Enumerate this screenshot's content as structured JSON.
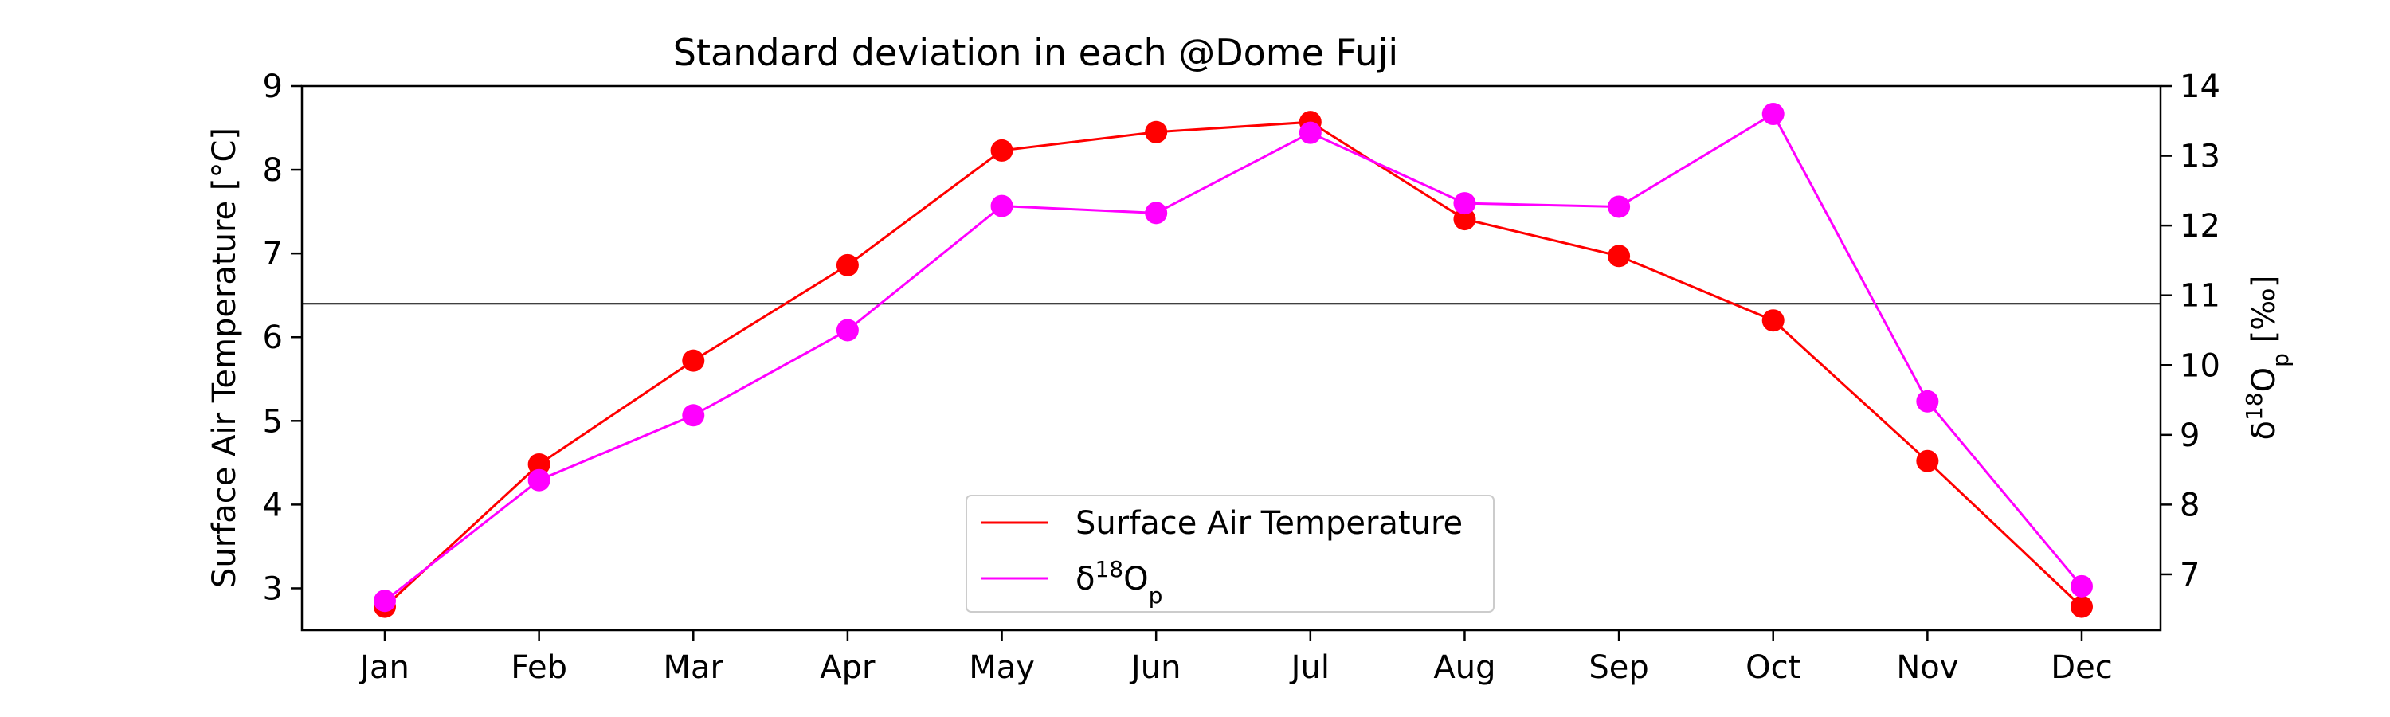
{
  "chart_data": {
    "type": "line",
    "title": "Standard deviation in each @Dome Fuji",
    "categories": [
      "Jan",
      "Feb",
      "Mar",
      "Apr",
      "May",
      "Jun",
      "Jul",
      "Aug",
      "Sep",
      "Oct",
      "Nov",
      "Dec"
    ],
    "series": [
      {
        "name": "Surface Air Temperature",
        "axis": "left",
        "color": "#ff0000",
        "values": [
          2.78,
          4.48,
          5.72,
          6.86,
          8.23,
          8.45,
          8.57,
          7.41,
          6.97,
          6.2,
          4.52,
          2.78
        ]
      },
      {
        "name_parts": {
          "base": "δ",
          "sup": "18",
          "mid": "O",
          "sub": "p"
        },
        "axis": "right",
        "color": "#ff00ff",
        "values": [
          6.62,
          8.35,
          9.28,
          10.5,
          12.28,
          12.18,
          13.33,
          12.32,
          12.27,
          13.6,
          9.48,
          6.83
        ]
      }
    ],
    "ylabel": "Surface Air Temperature [°C]",
    "y2label_parts": {
      "base": "δ",
      "sup": "18",
      "mid": "O",
      "sub": "p",
      "tail": " [‰]"
    },
    "ylim": [
      2.5,
      9
    ],
    "y2lim": [
      6.2,
      14
    ],
    "yticks": [
      3,
      4,
      5,
      6,
      7,
      8,
      9
    ],
    "y2ticks": [
      7,
      8,
      9,
      10,
      11,
      12,
      13,
      14
    ],
    "hline": {
      "axis": "left",
      "value": 6.4,
      "color": "#000000"
    },
    "grid": false,
    "legend": "lower-center"
  }
}
